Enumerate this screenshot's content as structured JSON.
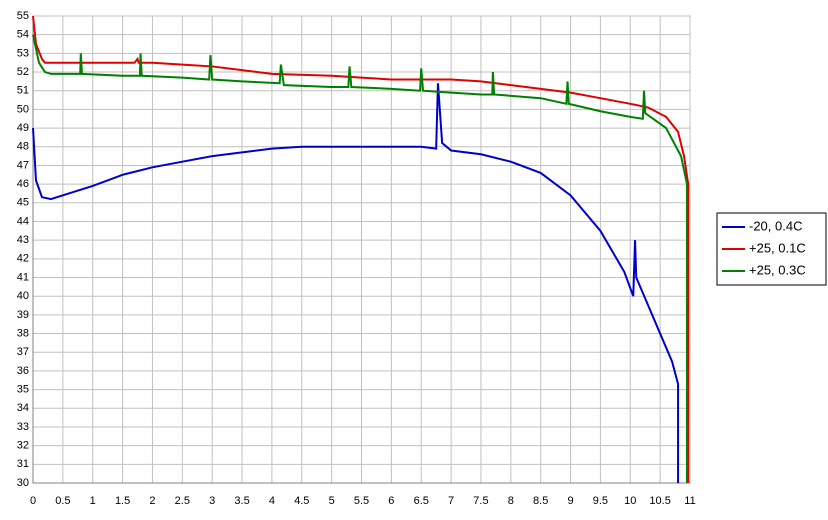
{
  "chart_data": {
    "type": "line",
    "xlim": [
      0,
      11
    ],
    "xticks": [
      0,
      0.5,
      1,
      1.5,
      2,
      2.5,
      3,
      3.5,
      4,
      4.5,
      5,
      5.5,
      6,
      6.5,
      7,
      7.5,
      8,
      8.5,
      9,
      9.5,
      10,
      10.5,
      11
    ],
    "ylim": [
      30,
      55
    ],
    "yticks": [
      30,
      31,
      32,
      33,
      34,
      35,
      36,
      37,
      38,
      39,
      40,
      41,
      42,
      43,
      44,
      45,
      46,
      47,
      48,
      49,
      50,
      51,
      52,
      53,
      54,
      55
    ],
    "grid": true,
    "legend": "right",
    "series": [
      {
        "name": "-20, 0.4C",
        "color": "#0000cc",
        "x": [
          0,
          0.05,
          0.15,
          0.3,
          0.5,
          1,
          1.5,
          2,
          2.5,
          3,
          3.5,
          4,
          4.5,
          5,
          5.5,
          6,
          6.5,
          6.75,
          6.78,
          6.85,
          7,
          7.5,
          8,
          8.5,
          9,
          9.5,
          9.9,
          10.05,
          10.08,
          10.1,
          10.3,
          10.5,
          10.7,
          10.8,
          10.8
        ],
        "values": [
          49,
          46.2,
          45.3,
          45.2,
          45.4,
          45.9,
          46.5,
          46.9,
          47.2,
          47.5,
          47.7,
          47.9,
          48,
          48,
          48,
          48,
          48,
          47.9,
          51.4,
          48.2,
          47.8,
          47.6,
          47.2,
          46.6,
          45.4,
          43.5,
          41.3,
          40,
          43,
          41,
          39.5,
          38,
          36.5,
          35.3,
          30
        ]
      },
      {
        "name": "+25, 0.1C",
        "color": "#e00000",
        "x": [
          0,
          0.05,
          0.15,
          0.2,
          1.7,
          1.75,
          1.77,
          2,
          2.5,
          3,
          3.5,
          4,
          5,
          5.5,
          6,
          6.5,
          7,
          7.5,
          8,
          8.5,
          9,
          9.5,
          10,
          10.3,
          10.6,
          10.8,
          10.9,
          10.97,
          10.97
        ],
        "values": [
          55,
          53.5,
          52.7,
          52.5,
          52.5,
          52.7,
          52.5,
          52.5,
          52.4,
          52.3,
          52.1,
          51.9,
          51.8,
          51.7,
          51.6,
          51.6,
          51.6,
          51.5,
          51.3,
          51.1,
          50.9,
          50.6,
          50.3,
          50.1,
          49.6,
          48.8,
          47.5,
          46,
          30
        ]
      },
      {
        "name": "+25, 0.3C",
        "color": "#008000",
        "x": [
          0,
          0.1,
          0.2,
          0.3,
          0.79,
          0.8,
          0.82,
          1.5,
          1.79,
          1.8,
          1.82,
          2.5,
          2.95,
          2.97,
          3,
          3.5,
          4.13,
          4.15,
          4.2,
          5,
          5.28,
          5.3,
          5.33,
          6,
          6.48,
          6.5,
          6.53,
          7,
          7.5,
          7.69,
          7.7,
          7.72,
          8.5,
          8.93,
          8.95,
          8.97,
          9.5,
          10,
          10.21,
          10.23,
          10.25,
          10.6,
          10.85,
          10.95,
          10.95
        ],
        "values": [
          54,
          52.5,
          52,
          51.9,
          51.9,
          53,
          51.9,
          51.8,
          51.8,
          53,
          51.8,
          51.7,
          51.6,
          52.9,
          51.6,
          51.5,
          51.4,
          52.4,
          51.3,
          51.2,
          51.2,
          52.3,
          51.2,
          51.1,
          51,
          52.2,
          51,
          50.9,
          50.8,
          50.8,
          52,
          50.8,
          50.6,
          50.3,
          51.5,
          50.3,
          49.9,
          49.6,
          49.5,
          51,
          49.8,
          49,
          47.5,
          46,
          30
        ]
      }
    ]
  }
}
